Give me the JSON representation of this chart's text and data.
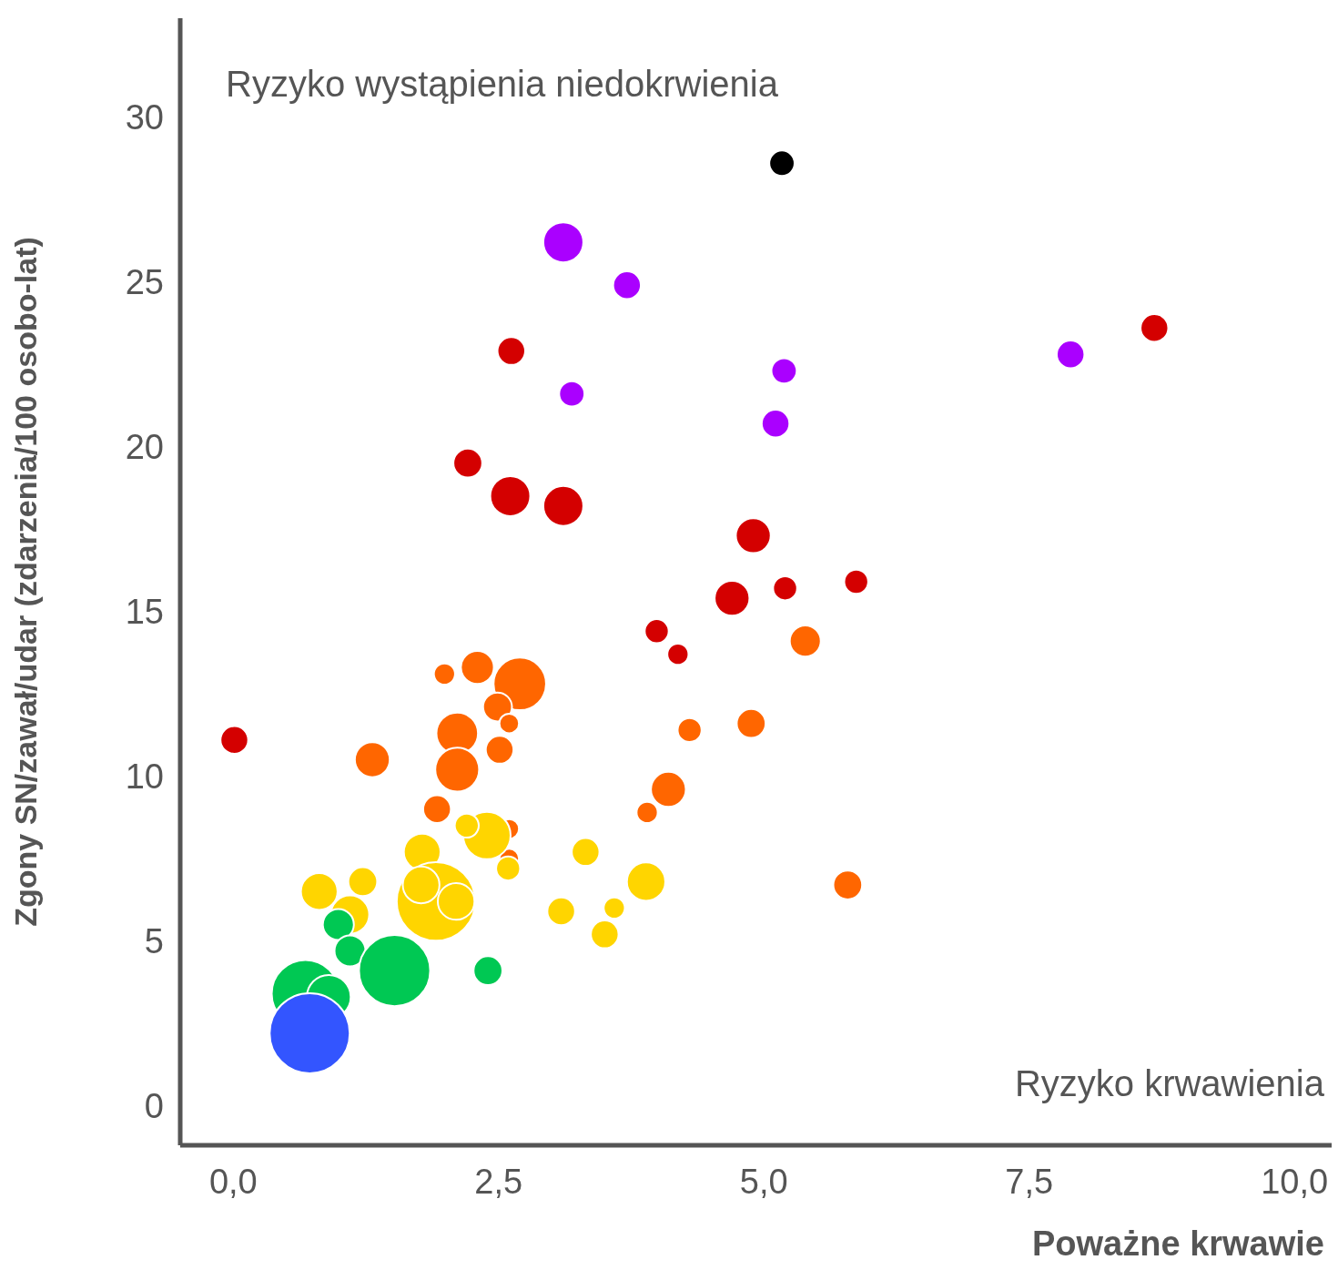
{
  "chart_data": {
    "type": "bubble",
    "xlabel": "Poważne krwawie",
    "ylabel": "Zgony SN/zawał/udar (zdarzenia/100 osobo-lat)",
    "annotations": [
      "Ryzyko wystąpienia niedokrwienia",
      "Ryzyko krwawienia"
    ],
    "xlim": [
      -0.5,
      10.35
    ],
    "ylim": [
      -1.2,
      33
    ],
    "xticks": [
      {
        "value": 0,
        "label": "0,0"
      },
      {
        "value": 2.5,
        "label": "2,5"
      },
      {
        "value": 5,
        "label": "5,0"
      },
      {
        "value": 7.5,
        "label": "7,5"
      },
      {
        "value": 10,
        "label": "10,0"
      }
    ],
    "yticks": [
      0,
      5,
      10,
      15,
      20,
      25,
      30
    ],
    "grid": false,
    "legend": false,
    "series": [
      {
        "color": "#000000",
        "x": [
          5.17
        ],
        "values": [
          28.6
        ],
        "sizes": [
          0.1
        ]
      },
      {
        "color": "#aa00ff",
        "x": [
          3.11,
          3.71,
          3.19,
          5.19,
          5.11,
          7.89
        ],
        "values": [
          26.2,
          24.9,
          21.6,
          22.3,
          20.7,
          22.8
        ],
        "sizes": [
          0.25,
          0.12,
          0.1,
          0.1,
          0.12,
          0.12
        ]
      },
      {
        "color": "#d40000",
        "x": [
          2.62,
          8.68,
          2.21,
          2.61,
          3.11,
          4.9,
          4.7,
          5.2,
          5.87,
          3.99,
          4.19,
          0.01
        ],
        "values": [
          22.9,
          23.6,
          19.5,
          18.5,
          18.2,
          17.3,
          15.4,
          15.7,
          15.9,
          14.4,
          13.7,
          11.1
        ],
        "sizes": [
          0.12,
          0.12,
          0.13,
          0.25,
          0.25,
          0.19,
          0.19,
          0.09,
          0.09,
          0.09,
          0.07,
          0.12
        ]
      },
      {
        "color": "#ff6600",
        "x": [
          5.39,
          1.99,
          2.3,
          2.7,
          2.49,
          2.6,
          2.11,
          2.51,
          2.11,
          1.31,
          4.88,
          4.3,
          4.1,
          1.92,
          3.9,
          2.6,
          2.6,
          5.79
        ],
        "values": [
          14.1,
          13.1,
          13.3,
          12.8,
          12.1,
          11.6,
          11.3,
          10.8,
          10.2,
          10.5,
          11.6,
          11.4,
          9.6,
          9.0,
          8.9,
          8.4,
          7.5,
          6.7
        ],
        "sizes": [
          0.15,
          0.07,
          0.17,
          0.43,
          0.13,
          0.06,
          0.27,
          0.12,
          0.3,
          0.19,
          0.13,
          0.09,
          0.19,
          0.12,
          0.07,
          0.06,
          0.06,
          0.13
        ]
      },
      {
        "color": "#ffd500",
        "x": [
          2.39,
          2.2,
          1.78,
          2.59,
          3.32,
          1.91,
          1.77,
          2.1,
          1.22,
          0.81,
          1.1,
          3.89,
          3.09,
          3.59,
          3.5
        ],
        "values": [
          8.2,
          8.5,
          7.7,
          7.2,
          7.7,
          6.2,
          6.7,
          6.2,
          6.8,
          6.5,
          5.8,
          6.8,
          5.9,
          6.0,
          5.2
        ],
        "sizes": [
          0.35,
          0.09,
          0.21,
          0.09,
          0.12,
          0.96,
          0.21,
          0.21,
          0.13,
          0.21,
          0.23,
          0.23,
          0.12,
          0.07,
          0.12
        ]
      },
      {
        "color": "#00c853",
        "x": [
          0.99,
          1.1,
          1.52,
          2.4,
          0.68,
          0.9
        ],
        "values": [
          5.5,
          4.7,
          4.1,
          4.1,
          3.4,
          3.3
        ],
        "sizes": [
          0.15,
          0.15,
          0.79,
          0.13,
          0.71,
          0.3
        ]
      },
      {
        "color": "#3355ff",
        "x": [
          0.72
        ],
        "values": [
          2.2
        ],
        "sizes": [
          1
        ]
      }
    ]
  }
}
